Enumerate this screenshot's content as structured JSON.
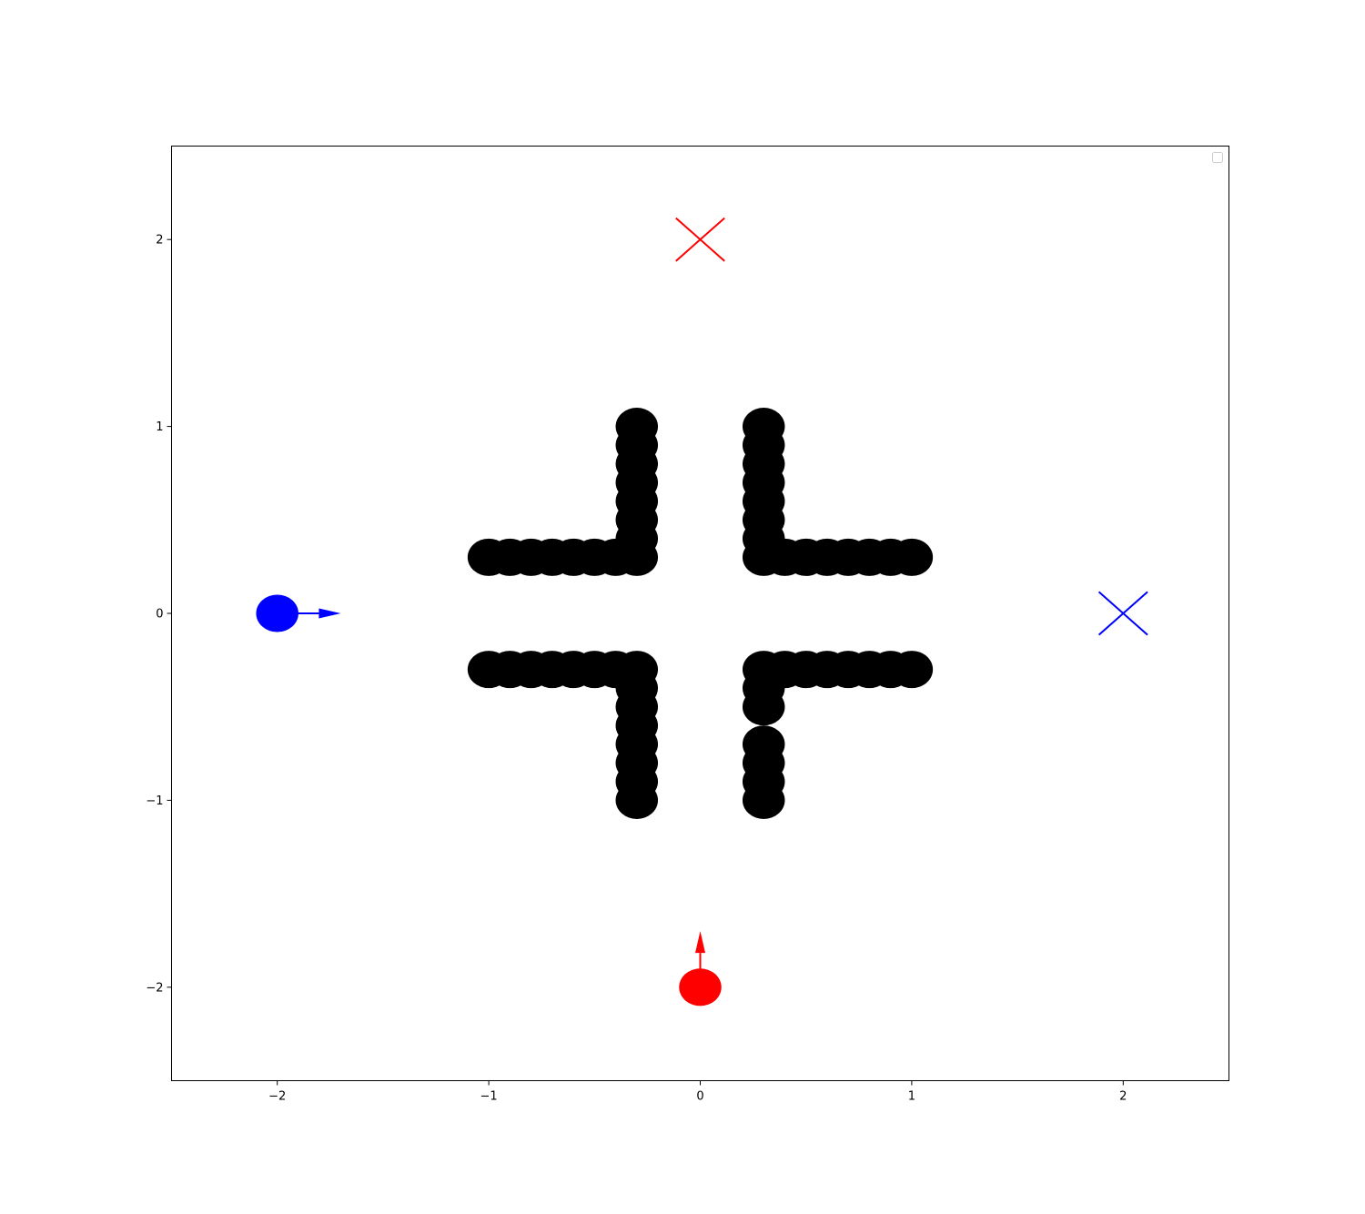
{
  "chart_data": {
    "type": "scatter",
    "title": "",
    "xlabel": "",
    "ylabel": "",
    "xlim": [
      -2.5,
      2.5
    ],
    "ylim": [
      -2.5,
      2.5
    ],
    "grid": false,
    "legend": {
      "placement": "top-right",
      "entries": []
    },
    "x_ticks": [
      {
        "value": -2,
        "label": "−2"
      },
      {
        "value": -1,
        "label": "−1"
      },
      {
        "value": 0,
        "label": "0"
      },
      {
        "value": 1,
        "label": "1"
      },
      {
        "value": 2,
        "label": "2"
      }
    ],
    "y_ticks": [
      {
        "value": -2,
        "label": "−2"
      },
      {
        "value": -1,
        "label": "−1"
      },
      {
        "value": 0,
        "label": "0"
      },
      {
        "value": 1,
        "label": "1"
      },
      {
        "value": 2,
        "label": "2"
      }
    ],
    "obstacles": {
      "color": "#000000",
      "radius": 0.1,
      "points": [
        [
          -0.3,
          1.0
        ],
        [
          -0.3,
          0.9
        ],
        [
          -0.3,
          0.8
        ],
        [
          -0.3,
          0.7
        ],
        [
          -0.3,
          0.6
        ],
        [
          -0.3,
          0.5
        ],
        [
          -0.3,
          0.4
        ],
        [
          -0.3,
          0.3
        ],
        [
          -0.4,
          0.3
        ],
        [
          -0.5,
          0.3
        ],
        [
          -0.6,
          0.3
        ],
        [
          -0.7,
          0.3
        ],
        [
          -0.8,
          0.3
        ],
        [
          -0.9,
          0.3
        ],
        [
          -1.0,
          0.3
        ],
        [
          0.3,
          1.0
        ],
        [
          0.3,
          0.9
        ],
        [
          0.3,
          0.8
        ],
        [
          0.3,
          0.7
        ],
        [
          0.3,
          0.6
        ],
        [
          0.3,
          0.5
        ],
        [
          0.3,
          0.4
        ],
        [
          0.3,
          0.3
        ],
        [
          0.4,
          0.3
        ],
        [
          0.5,
          0.3
        ],
        [
          0.6,
          0.3
        ],
        [
          0.7,
          0.3
        ],
        [
          0.8,
          0.3
        ],
        [
          0.9,
          0.3
        ],
        [
          1.0,
          0.3
        ],
        [
          -0.3,
          -0.3
        ],
        [
          -0.3,
          -0.4
        ],
        [
          -0.3,
          -0.5
        ],
        [
          -0.3,
          -0.6
        ],
        [
          -0.3,
          -0.7
        ],
        [
          -0.3,
          -0.8
        ],
        [
          -0.3,
          -0.9
        ],
        [
          -0.3,
          -1.0
        ],
        [
          -0.4,
          -0.3
        ],
        [
          -0.5,
          -0.3
        ],
        [
          -0.6,
          -0.3
        ],
        [
          -0.7,
          -0.3
        ],
        [
          -0.8,
          -0.3
        ],
        [
          -0.9,
          -0.3
        ],
        [
          -1.0,
          -0.3
        ],
        [
          0.3,
          -0.3
        ],
        [
          0.3,
          -0.4
        ],
        [
          0.3,
          -0.5
        ],
        [
          0.3,
          -0.7
        ],
        [
          0.3,
          -0.8
        ],
        [
          0.3,
          -0.9
        ],
        [
          0.3,
          -1.0
        ],
        [
          0.4,
          -0.3
        ],
        [
          0.5,
          -0.3
        ],
        [
          0.6,
          -0.3
        ],
        [
          0.7,
          -0.3
        ],
        [
          0.8,
          -0.3
        ],
        [
          0.9,
          -0.3
        ],
        [
          1.0,
          -0.3
        ]
      ]
    },
    "agents": [
      {
        "color": "#0000ff",
        "position": [
          -2.0,
          0.0
        ],
        "radius": 0.1,
        "heading": [
          0.3,
          0.0
        ],
        "goal": [
          2.0,
          0.0
        ]
      },
      {
        "color": "#ff0000",
        "position": [
          0.0,
          -2.0
        ],
        "radius": 0.1,
        "heading": [
          0.0,
          0.3
        ],
        "goal": [
          0.0,
          2.0
        ]
      }
    ],
    "goal_marker_half_size": 0.115
  }
}
